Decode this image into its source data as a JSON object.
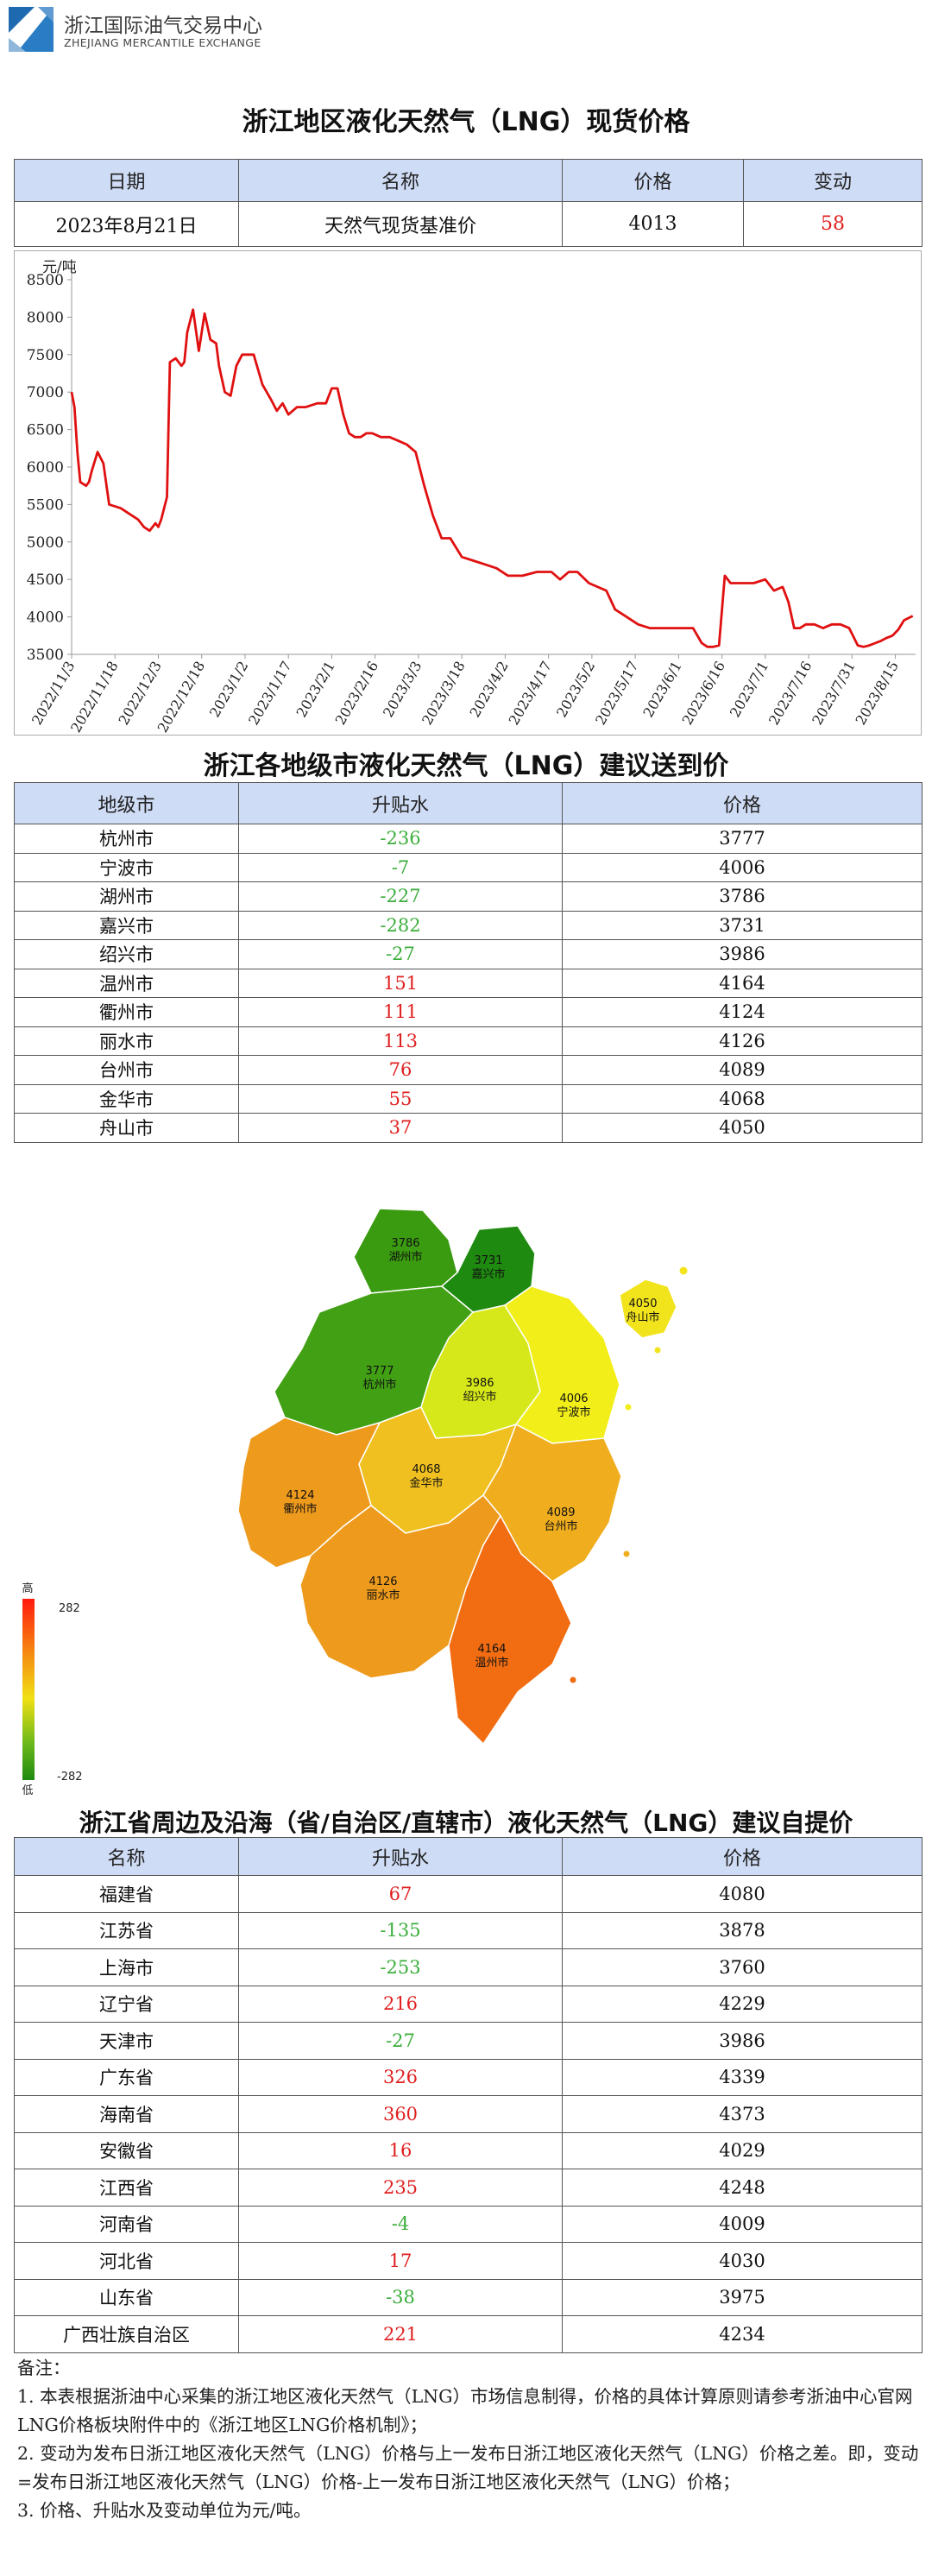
{
  "header": {
    "org_cn": "浙江国际油气交易中心",
    "org_en": "ZHEJIANG MERCANTILE EXCHANGE",
    "logo_icon": "zmx-logo-icon"
  },
  "spot": {
    "title": "浙江地区液化天然气（LNG）现货价格",
    "headers": [
      "日期",
      "名称",
      "价格",
      "变动"
    ],
    "row": {
      "date": "2023年8月21日",
      "name": "天然气现货基准价",
      "price": "4013",
      "change": "58"
    }
  },
  "chart_data": {
    "type": "line",
    "ylabel": "元/吨",
    "ylim": [
      3500,
      8500
    ],
    "yticks": [
      3500,
      4000,
      4500,
      5000,
      5500,
      6000,
      6500,
      7000,
      7500,
      8000,
      8500
    ],
    "xtick_labels": [
      "2022/11/3",
      "2022/11/18",
      "2022/12/3",
      "2022/12/18",
      "2023/1/2",
      "2023/1/17",
      "2023/2/1",
      "2023/2/16",
      "2023/3/3",
      "2023/3/18",
      "2023/4/2",
      "2023/4/17",
      "2023/5/2",
      "2023/5/17",
      "2023/6/1",
      "2023/6/16",
      "2023/7/1",
      "2023/7/16",
      "2023/7/31",
      "2023/8/15"
    ],
    "series_color": "#e01010",
    "series": [
      {
        "name": "",
        "x": [
          "2022/11/3",
          "2022/11/4",
          "2022/11/5",
          "2022/11/6",
          "2022/11/8",
          "2022/11/9",
          "2022/11/10",
          "2022/11/12",
          "2022/11/14",
          "2022/11/16",
          "2022/11/20",
          "2022/11/24",
          "2022/11/26",
          "2022/11/28",
          "2022/11/30",
          "2022/12/2",
          "2022/12/3",
          "2022/12/4",
          "2022/12/6",
          "2022/12/7",
          "2022/12/9",
          "2022/12/11",
          "2022/12/12",
          "2022/12/13",
          "2022/12/15",
          "2022/12/17",
          "2022/12/19",
          "2022/12/21",
          "2022/12/23",
          "2022/12/24",
          "2022/12/26",
          "2022/12/28",
          "2022/12/30",
          "2023/1/1",
          "2023/1/3",
          "2023/1/5",
          "2023/1/8",
          "2023/1/11",
          "2023/1/13",
          "2023/1/15",
          "2023/1/17",
          "2023/1/20",
          "2023/1/23",
          "2023/1/27",
          "2023/1/30",
          "2023/2/1",
          "2023/2/3",
          "2023/2/5",
          "2023/2/7",
          "2023/2/9",
          "2023/2/11",
          "2023/2/13",
          "2023/2/15",
          "2023/2/18",
          "2023/2/21",
          "2023/2/24",
          "2023/2/27",
          "2023/3/2",
          "2023/3/5",
          "2023/3/8",
          "2023/3/11",
          "2023/3/14",
          "2023/3/18",
          "2023/3/22",
          "2023/3/26",
          "2023/3/30",
          "2023/4/3",
          "2023/4/8",
          "2023/4/13",
          "2023/4/18",
          "2023/4/21",
          "2023/4/24",
          "2023/4/27",
          "2023/5/1",
          "2023/5/4",
          "2023/5/7",
          "2023/5/10",
          "2023/5/14",
          "2023/5/18",
          "2023/5/22",
          "2023/5/26",
          "2023/5/30",
          "2023/6/3",
          "2023/6/6",
          "2023/6/9",
          "2023/6/11",
          "2023/6/13",
          "2023/6/15",
          "2023/6/17",
          "2023/6/19",
          "2023/6/23",
          "2023/6/27",
          "2023/7/1",
          "2023/7/4",
          "2023/7/7",
          "2023/7/9",
          "2023/7/11",
          "2023/7/13",
          "2023/7/15",
          "2023/7/18",
          "2023/7/21",
          "2023/7/24",
          "2023/7/27",
          "2023/7/30",
          "2023/8/2",
          "2023/8/4",
          "2023/8/6",
          "2023/8/8",
          "2023/8/10",
          "2023/8/12",
          "2023/8/14",
          "2023/8/16",
          "2023/8/18",
          "2023/8/21"
        ],
        "values": [
          7000,
          6800,
          6200,
          5800,
          5750,
          5800,
          5950,
          6200,
          6050,
          5500,
          5450,
          5350,
          5300,
          5200,
          5150,
          5250,
          5200,
          5300,
          5600,
          7400,
          7450,
          7350,
          7400,
          7800,
          8100,
          7550,
          8050,
          7700,
          7650,
          7350,
          7000,
          6950,
          7350,
          7500,
          7500,
          7500,
          7100,
          6900,
          6750,
          6850,
          6700,
          6800,
          6800,
          6850,
          6850,
          7050,
          7050,
          6700,
          6450,
          6400,
          6400,
          6450,
          6450,
          6400,
          6400,
          6350,
          6300,
          6200,
          5750,
          5350,
          5050,
          5050,
          4800,
          4750,
          4700,
          4650,
          4550,
          4550,
          4600,
          4600,
          4500,
          4600,
          4600,
          4450,
          4400,
          4350,
          4100,
          4000,
          3900,
          3850,
          3850,
          3850,
          3850,
          3850,
          3650,
          3600,
          3600,
          3620,
          4550,
          4450,
          4450,
          4450,
          4500,
          4350,
          4400,
          4200,
          3850,
          3850,
          3900,
          3900,
          3850,
          3900,
          3900,
          3850,
          3620,
          3600,
          3620,
          3650,
          3680,
          3720,
          3750,
          3830,
          3955,
          4013
        ]
      }
    ]
  },
  "cities": {
    "title": "浙江各地级市液化天然气（LNG）建议送到价",
    "headers": [
      "地级市",
      "升贴水",
      "价格"
    ],
    "rows": [
      {
        "name": "杭州市",
        "diff": "-236",
        "price": "3777"
      },
      {
        "name": "宁波市",
        "diff": "-7",
        "price": "4006"
      },
      {
        "name": "湖州市",
        "diff": "-227",
        "price": "3786"
      },
      {
        "name": "嘉兴市",
        "diff": "-282",
        "price": "3731"
      },
      {
        "name": "绍兴市",
        "diff": "-27",
        "price": "3986"
      },
      {
        "name": "温州市",
        "diff": "151",
        "price": "4164"
      },
      {
        "name": "衢州市",
        "diff": "111",
        "price": "4124"
      },
      {
        "name": "丽水市",
        "diff": "113",
        "price": "4126"
      },
      {
        "name": "台州市",
        "diff": "76",
        "price": "4089"
      },
      {
        "name": "金华市",
        "diff": "55",
        "price": "4068"
      },
      {
        "name": "舟山市",
        "diff": "37",
        "price": "4050"
      }
    ]
  },
  "map": {
    "legend_high": "高",
    "legend_low": "低",
    "legend_max": "282",
    "legend_min": "-282",
    "regions": [
      {
        "name": "湖州市",
        "price": "3786",
        "color": "#3a9a10"
      },
      {
        "name": "嘉兴市",
        "price": "3731",
        "color": "#1f8a10"
      },
      {
        "name": "杭州市",
        "price": "3777",
        "color": "#42a014"
      },
      {
        "name": "绍兴市",
        "price": "3986",
        "color": "#d7e81a"
      },
      {
        "name": "宁波市",
        "price": "4006",
        "color": "#f2ee1a"
      },
      {
        "name": "舟山市",
        "price": "4050",
        "color": "#f2e41c"
      },
      {
        "name": "金华市",
        "price": "4068",
        "color": "#f0c020"
      },
      {
        "name": "衢州市",
        "price": "4124",
        "color": "#ee9a1c"
      },
      {
        "name": "台州市",
        "price": "4089",
        "color": "#f0ae1e"
      },
      {
        "name": "丽水市",
        "price": "4126",
        "color": "#ee9a1c"
      },
      {
        "name": "温州市",
        "price": "4164",
        "color": "#f26c12"
      }
    ]
  },
  "provinces": {
    "title": "浙江省周边及沿海（省/自治区/直辖市）液化天然气（LNG）建议自提价",
    "headers": [
      "名称",
      "升贴水",
      "价格"
    ],
    "rows": [
      {
        "name": "福建省",
        "diff": "67",
        "price": "4080"
      },
      {
        "name": "江苏省",
        "diff": "-135",
        "price": "3878"
      },
      {
        "name": "上海市",
        "diff": "-253",
        "price": "3760"
      },
      {
        "name": "辽宁省",
        "diff": "216",
        "price": "4229"
      },
      {
        "name": "天津市",
        "diff": "-27",
        "price": "3986"
      },
      {
        "name": "广东省",
        "diff": "326",
        "price": "4339"
      },
      {
        "name": "海南省",
        "diff": "360",
        "price": "4373"
      },
      {
        "name": "安徽省",
        "diff": "16",
        "price": "4029"
      },
      {
        "name": "江西省",
        "diff": "235",
        "price": "4248"
      },
      {
        "name": "河南省",
        "diff": "-4",
        "price": "4009"
      },
      {
        "name": "河北省",
        "diff": "17",
        "price": "4030"
      },
      {
        "name": "山东省",
        "diff": "-38",
        "price": "3975"
      },
      {
        "name": "广西壮族自治区",
        "diff": "221",
        "price": "4234"
      }
    ]
  },
  "notes": {
    "heading": "备注：",
    "items": [
      "1. 本表根据浙油中心采集的浙江地区液化天然气（LNG）市场信息制得，价格的具体计算原则请参考浙油中心官网LNG价格板块附件中的《浙江地区LNG价格机制》；",
      "2. 变动为发布日浙江地区液化天然气（LNG）价格与上一发布日浙江地区液化天然气（LNG）价格之差。即，变动=发布日浙江地区液化天然气（LNG）价格-上一发布日浙江地区液化天然气（LNG）价格；",
      "3. 价格、升贴水及变动单位为元/吨。"
    ]
  }
}
